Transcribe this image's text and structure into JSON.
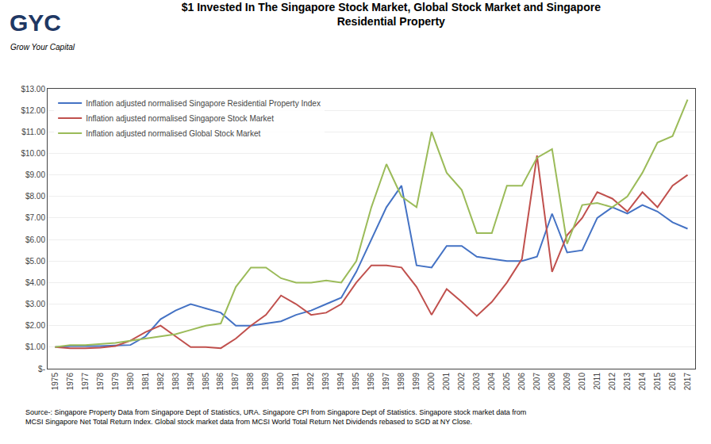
{
  "chart_data": {
    "type": "line",
    "title": "$1 Invested In The Singapore Stock Market, Global Stock Market and Singapore\nResidential Property",
    "x": [
      1975,
      1976,
      1977,
      1978,
      1979,
      1980,
      1981,
      1982,
      1983,
      1984,
      1985,
      1986,
      1987,
      1988,
      1989,
      1990,
      1991,
      1992,
      1993,
      1994,
      1995,
      1996,
      1997,
      1998,
      1999,
      2000,
      2001,
      2002,
      2003,
      2004,
      2005,
      2006,
      2007,
      2008,
      2009,
      2010,
      2011,
      2012,
      2013,
      2014,
      2015,
      2016,
      2017
    ],
    "series": [
      {
        "name": "Inflation adjusted normalised Singapore Residential Property Index",
        "color": "#4472C4",
        "values": [
          1.0,
          1.05,
          1.05,
          1.05,
          1.08,
          1.1,
          1.5,
          2.3,
          2.7,
          3.0,
          2.8,
          2.6,
          2.0,
          2.0,
          2.1,
          2.2,
          2.5,
          2.7,
          3.0,
          3.3,
          4.5,
          6.0,
          7.5,
          8.5,
          4.8,
          4.7,
          5.7,
          5.7,
          5.2,
          5.1,
          5.0,
          5.0,
          5.2,
          7.2,
          5.4,
          5.5,
          7.0,
          7.5,
          7.2,
          7.6,
          7.3,
          6.8,
          6.5
        ]
      },
      {
        "name": "Inflation adjusted normalised Singapore Stock Market",
        "color": "#C0504D",
        "values": [
          1.0,
          0.95,
          0.95,
          0.98,
          1.05,
          1.3,
          1.7,
          2.0,
          1.5,
          1.0,
          1.0,
          0.95,
          1.4,
          2.0,
          2.5,
          3.4,
          3.0,
          2.5,
          2.6,
          3.0,
          4.0,
          4.8,
          4.8,
          4.7,
          3.8,
          2.5,
          3.7,
          3.1,
          2.45,
          3.1,
          4.0,
          5.1,
          9.9,
          4.5,
          6.2,
          7.0,
          8.2,
          7.9,
          7.3,
          8.2,
          7.5,
          8.5,
          9.0
        ]
      },
      {
        "name": "Inflation adjusted normalised Global Stock Market",
        "color": "#9BBB59",
        "values": [
          1.0,
          1.1,
          1.1,
          1.15,
          1.2,
          1.3,
          1.4,
          1.5,
          1.6,
          1.8,
          2.0,
          2.1,
          3.8,
          4.7,
          4.7,
          4.2,
          4.0,
          4.0,
          4.1,
          4.0,
          5.0,
          7.5,
          9.5,
          8.0,
          7.5,
          11.0,
          9.1,
          8.3,
          6.3,
          6.3,
          8.5,
          8.5,
          9.8,
          10.2,
          5.8,
          7.6,
          7.7,
          7.5,
          8.0,
          9.1,
          10.5,
          10.8,
          12.5
        ]
      }
    ],
    "xlim": [
      1974.5,
      2017.5
    ],
    "xticks": [
      1975,
      1976,
      1977,
      1978,
      1979,
      1980,
      1981,
      1982,
      1983,
      1984,
      1985,
      1986,
      1987,
      1988,
      1989,
      1990,
      1991,
      1992,
      1993,
      1994,
      1995,
      1996,
      1997,
      1998,
      1999,
      2000,
      2001,
      2002,
      2003,
      2004,
      2005,
      2006,
      2007,
      2008,
      2009,
      2010,
      2011,
      2012,
      2013,
      2014,
      2015,
      2016,
      2017
    ],
    "ylim": [
      0,
      13
    ],
    "yticks": [
      {
        "value": 0,
        "label": "$-"
      },
      {
        "value": 1,
        "label": "$1.00"
      },
      {
        "value": 2,
        "label": "$2.00"
      },
      {
        "value": 3,
        "label": "$3.00"
      },
      {
        "value": 4,
        "label": "$4.00"
      },
      {
        "value": 5,
        "label": "$5.00"
      },
      {
        "value": 6,
        "label": "$6.00"
      },
      {
        "value": 7,
        "label": "$7.00"
      },
      {
        "value": 8,
        "label": "$8.00"
      },
      {
        "value": 9,
        "label": "$9.00"
      },
      {
        "value": 10,
        "label": "$10.00"
      },
      {
        "value": 11,
        "label": "$11.00"
      },
      {
        "value": 12,
        "label": "$12.00"
      },
      {
        "value": 13,
        "label": "$13.00"
      }
    ],
    "grid": "y",
    "legend": "upper left",
    "annotations": [
      "GYC",
      "Grow Your Capital",
      "Source-: Singapore Property Data from Singapore Dept of Statistics, URA. Singapore CPI from Singapore Dept of Statistics. Singapore stock market data from\nMCSI Singapore Net Total Return Index. Global stock market data from MCSI World Total Return Net Dividends rebased to SGD at NY Close."
    ]
  }
}
